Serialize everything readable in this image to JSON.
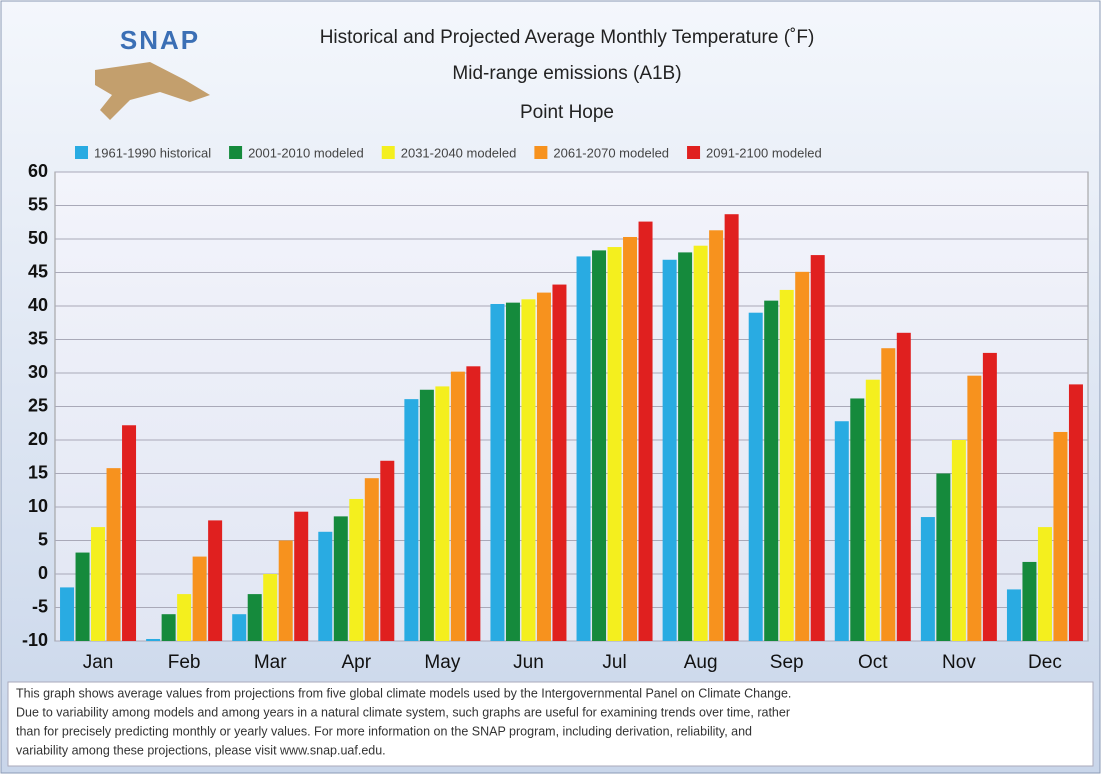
{
  "logo": "SNAP",
  "chart_data": {
    "type": "bar",
    "title": "Historical and Projected Average Monthly Temperature (˚F)",
    "subtitle": "Mid-range emissions (A1B)",
    "location": "Point Hope",
    "categories": [
      "Jan",
      "Feb",
      "Mar",
      "Apr",
      "May",
      "Jun",
      "Jul",
      "Aug",
      "Sep",
      "Oct",
      "Nov",
      "Dec"
    ],
    "series": [
      {
        "name": "1961-1990 historical",
        "color": "#29abe2",
        "values": [
          -2,
          -9.7,
          -6,
          6.3,
          26.1,
          40.3,
          47.4,
          46.9,
          39,
          22.8,
          8.5,
          -2.3
        ]
      },
      {
        "name": "2001-2010 modeled",
        "color": "#158a3c",
        "values": [
          3.2,
          -6,
          -3,
          8.6,
          27.5,
          40.5,
          48.3,
          48,
          40.8,
          26.2,
          15,
          1.8
        ]
      },
      {
        "name": "2031-2040 modeled",
        "color": "#f4ef1e",
        "values": [
          7,
          -3,
          0,
          11.2,
          28,
          41,
          48.8,
          49,
          42.4,
          29,
          20,
          7
        ]
      },
      {
        "name": "2061-2070 modeled",
        "color": "#f7921e",
        "values": [
          15.8,
          2.6,
          5,
          14.3,
          30.2,
          42,
          50.3,
          51.3,
          45.1,
          33.7,
          29.6,
          21.2
        ]
      },
      {
        "name": "2091-2100 modeled",
        "color": "#e0201f",
        "values": [
          22.2,
          8,
          9.3,
          16.9,
          31,
          43.2,
          52.6,
          53.7,
          47.6,
          36,
          33,
          28.3
        ]
      }
    ],
    "ylim": [
      -10,
      60
    ],
    "yticks": [
      -10,
      -5,
      0,
      5,
      10,
      15,
      20,
      25,
      30,
      35,
      40,
      45,
      50,
      55,
      60
    ],
    "grid": true,
    "legend": "top"
  },
  "footer": {
    "lines": [
      "This graph shows average values from projections from five global climate models used by the Intergovernmental Panel on Climate Change.",
      "Due to variability among models and among years in a natural climate system, such graphs are useful for examining trends over time, rather",
      "than for precisely predicting monthly or yearly values. For more information on the SNAP program, including derivation, reliability, and",
      "variability among these projections, please visit www.snap.uaf.edu."
    ]
  }
}
